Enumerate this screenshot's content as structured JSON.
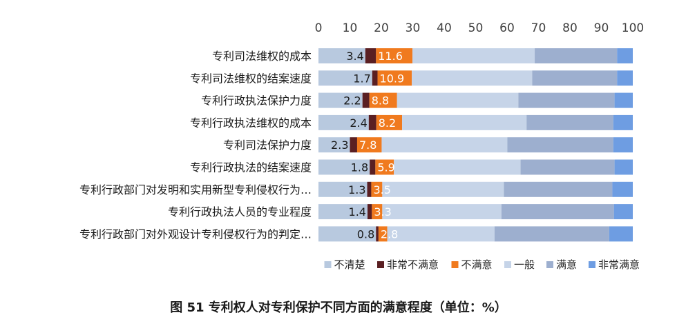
{
  "chart_data": {
    "type": "bar",
    "stacked": true,
    "orientation": "horizontal",
    "title": "图 51  专利权人对专利保护不同方面的满意程度（单位：%）",
    "xlim": [
      0,
      100
    ],
    "xticks": [
      0,
      10,
      20,
      30,
      40,
      50,
      60,
      70,
      80,
      90,
      100
    ],
    "legend_position": "bottom-right",
    "categories": [
      "专利司法维权的成本",
      "专利司法维权的结案速度",
      "专利行政执法保护力度",
      "专利行政执法维权的成本",
      "专利司法保护力度",
      "专利行政执法的结案速度",
      "专利行政部门对发明和实用新型专利侵权行为…",
      "专利行政执法人员的专业程度",
      "专利行政部门对外观设计专利侵权行为的判定…"
    ],
    "series": [
      {
        "name": "不清楚",
        "color": "#b8c9df",
        "labeled": false,
        "values": [
          14.9,
          17.1,
          14.0,
          16.0,
          10.0,
          16.3,
          15.5,
          15.6,
          18.3
        ]
      },
      {
        "name": "非常不满意",
        "color": "#5a1f22",
        "labeled": true,
        "values": [
          3.4,
          1.7,
          2.2,
          2.4,
          2.3,
          1.8,
          1.3,
          1.4,
          0.8
        ]
      },
      {
        "name": "不满意",
        "color": "#f07a1e",
        "labeled": true,
        "values": [
          11.6,
          10.9,
          8.8,
          8.2,
          7.8,
          5.9,
          3.5,
          3.3,
          2.8
        ]
      },
      {
        "name": "一般",
        "color": "#c6d4e8",
        "labeled": false,
        "values": [
          38.9,
          38.3,
          38.6,
          39.6,
          40.0,
          40.3,
          38.7,
          37.9,
          34.1
        ]
      },
      {
        "name": "满意",
        "color": "#9dafcf",
        "labeled": false,
        "values": [
          26.2,
          27.0,
          30.6,
          27.6,
          33.7,
          29.9,
          34.5,
          35.8,
          36.5
        ]
      },
      {
        "name": "非常满意",
        "color": "#6e9de2",
        "labeled": false,
        "values": [
          5.0,
          5.0,
          5.8,
          6.2,
          6.2,
          5.8,
          6.5,
          6.0,
          7.5
        ]
      }
    ]
  }
}
